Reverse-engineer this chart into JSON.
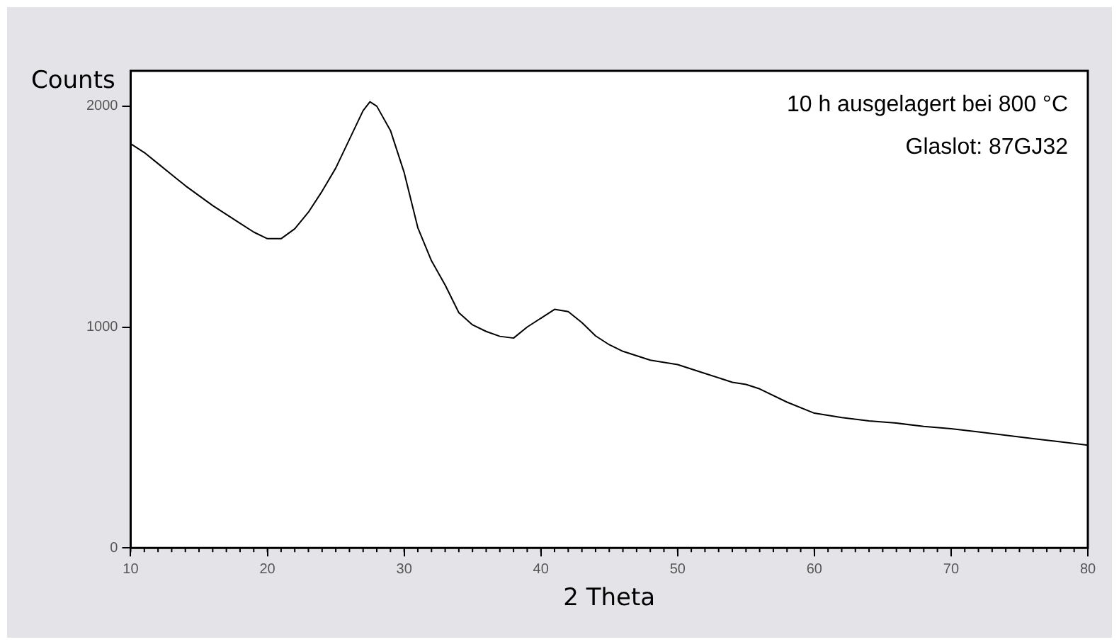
{
  "chart_data": {
    "type": "line",
    "xlabel": "2 Theta",
    "ylabel": "Counts",
    "annotations": [
      "10 h ausgelagert bei 800 °C",
      "Glaslot: 87GJ32"
    ],
    "xlim": [
      10,
      80
    ],
    "xticks": [
      10,
      20,
      30,
      40,
      50,
      60,
      70,
      80
    ],
    "ylim": [
      0,
      2160
    ],
    "yticks": [
      0,
      1000,
      2000
    ],
    "grid": false,
    "legend": false,
    "marker": "none",
    "line_style": "solid",
    "series": [
      {
        "color": "#000000",
        "x": [
          10,
          11,
          12,
          13,
          14,
          15,
          16,
          17,
          18,
          19,
          20,
          21,
          22,
          23,
          24,
          25,
          26,
          27,
          27.5,
          28,
          29,
          30,
          31,
          32,
          33,
          34,
          35,
          36,
          37,
          38,
          39,
          40,
          41,
          42,
          43,
          44,
          45,
          46,
          47,
          48,
          50,
          52,
          54,
          55,
          56,
          58,
          60,
          62,
          64,
          66,
          68,
          70,
          72,
          74,
          76,
          78,
          80
        ],
        "values": [
          1830,
          1790,
          1740,
          1690,
          1640,
          1595,
          1550,
          1510,
          1470,
          1430,
          1400,
          1400,
          1445,
          1520,
          1615,
          1720,
          1850,
          1980,
          2020,
          2000,
          1890,
          1700,
          1450,
          1300,
          1190,
          1065,
          1010,
          980,
          958,
          950,
          1000,
          1040,
          1080,
          1070,
          1020,
          960,
          920,
          890,
          870,
          850,
          830,
          790,
          750,
          740,
          720,
          660,
          610,
          590,
          575,
          565,
          550,
          540,
          525,
          510,
          495,
          480,
          465
        ]
      }
    ]
  }
}
